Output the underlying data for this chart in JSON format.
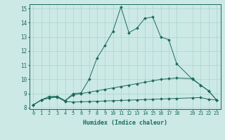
{
  "xlabel": "Humidex (Indice chaleur)",
  "ylabel": "",
  "background_color": "#cce9e5",
  "grid_color": "#aad4cf",
  "line_color": "#1a6b5a",
  "xlim": [
    -0.5,
    23.5
  ],
  "ylim": [
    7.9,
    15.3
  ],
  "x_ticks": [
    0,
    1,
    2,
    3,
    4,
    5,
    6,
    7,
    8,
    9,
    10,
    11,
    12,
    13,
    14,
    15,
    16,
    17,
    18,
    20,
    21,
    22,
    23
  ],
  "y_ticks": [
    8,
    9,
    10,
    11,
    12,
    13,
    14,
    15
  ],
  "line1_x": [
    0,
    1,
    2,
    3,
    4,
    5,
    6,
    7,
    8,
    9,
    10,
    11,
    12,
    13,
    14,
    15,
    16,
    17,
    18,
    20,
    21,
    22,
    23
  ],
  "line1_y": [
    8.2,
    8.55,
    8.7,
    8.75,
    8.45,
    8.4,
    8.42,
    8.44,
    8.46,
    8.48,
    8.5,
    8.52,
    8.54,
    8.56,
    8.58,
    8.6,
    8.62,
    8.64,
    8.66,
    8.7,
    8.72,
    8.6,
    8.55
  ],
  "line2_x": [
    0,
    1,
    2,
    3,
    4,
    5,
    6,
    7,
    8,
    9,
    10,
    11,
    12,
    13,
    14,
    15,
    16,
    17,
    18,
    20,
    21,
    22,
    23
  ],
  "line2_y": [
    8.2,
    8.55,
    8.7,
    8.8,
    8.5,
    8.9,
    9.0,
    9.1,
    9.2,
    9.3,
    9.4,
    9.5,
    9.6,
    9.7,
    9.8,
    9.9,
    10.0,
    10.05,
    10.1,
    10.05,
    9.6,
    9.2,
    8.55
  ],
  "line3_x": [
    0,
    1,
    2,
    3,
    4,
    5,
    6,
    7,
    8,
    9,
    10,
    11,
    12,
    13,
    14,
    15,
    16,
    17,
    18,
    20,
    21,
    22,
    23
  ],
  "line3_y": [
    8.2,
    8.55,
    8.8,
    8.8,
    8.5,
    9.0,
    9.05,
    10.0,
    11.5,
    12.4,
    13.4,
    15.1,
    13.3,
    13.6,
    14.3,
    14.4,
    13.0,
    12.8,
    11.1,
    10.0,
    9.6,
    9.2,
    8.55
  ]
}
